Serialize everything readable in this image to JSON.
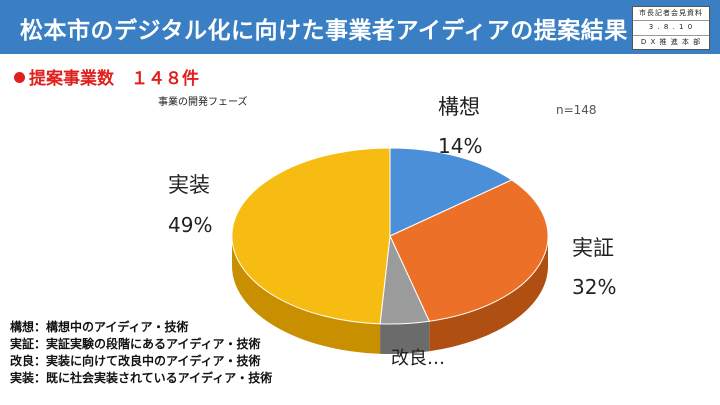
{
  "header": {
    "title": "松本市のデジタル化に向けた事業者アイディアの提案結果",
    "stamp": [
      "市長記者会見資料",
      "3 . 8 . 1 0",
      "D X 推 進 本 部"
    ]
  },
  "headline": "提案事業数　１４８件",
  "chart_data": {
    "type": "pie",
    "title": "事業の開発フェーズ",
    "note": "n=148",
    "three_d": true,
    "slices": [
      {
        "label": "構想",
        "value": 14,
        "display": "14%",
        "color": "#4a8fd8",
        "side": "#2f6aa8"
      },
      {
        "label": "実証",
        "value": 32,
        "display": "32%",
        "color": "#ec7028",
        "side": "#b04f12"
      },
      {
        "label": "改良…",
        "value": 5,
        "display": "",
        "color": "#9b9b9b",
        "side": "#6b6b6b"
      },
      {
        "label": "実装",
        "value": 49,
        "display": "49%",
        "color": "#f7bc12",
        "side": "#c88f00"
      }
    ]
  },
  "legend": [
    "構想：構想中のアイディア・技術",
    "実証：実証実験の段階にあるアイディア・技術",
    "改良：実装に向けて改良中のアイディア・技術",
    "実装：既に社会実装されているアイディア・技術"
  ]
}
